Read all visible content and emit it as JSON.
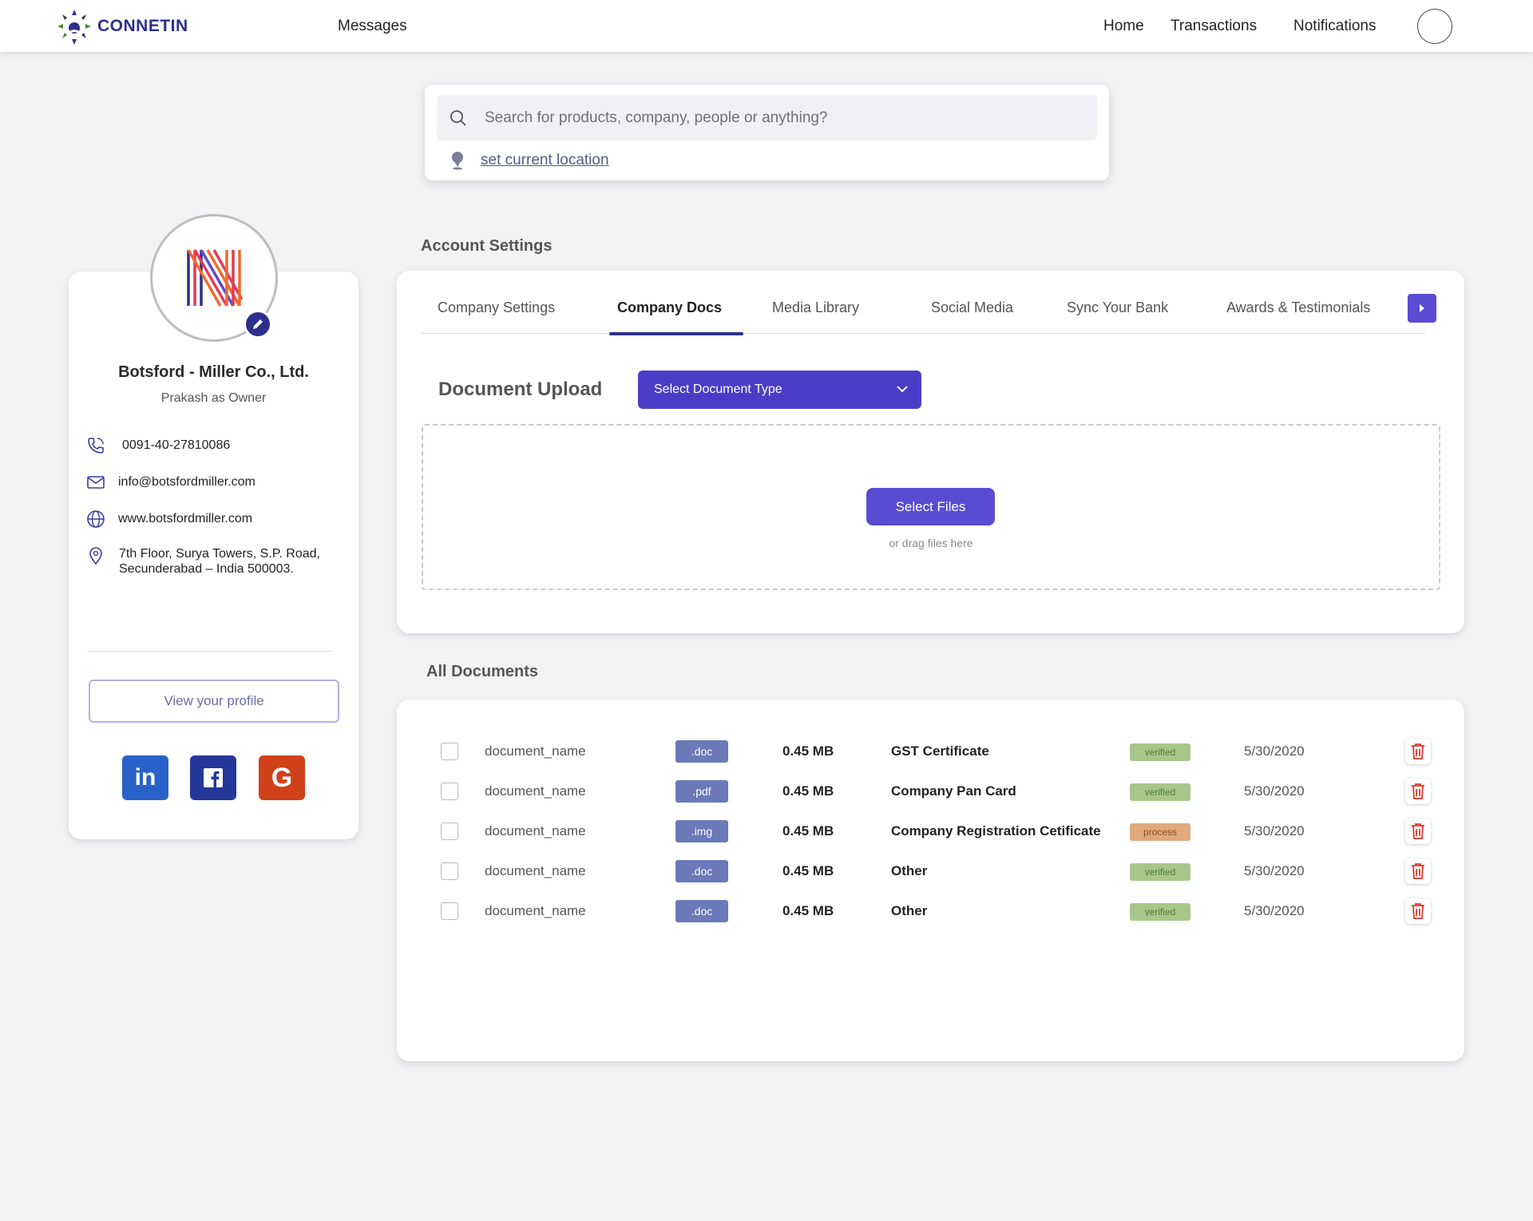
{
  "nav": {
    "brand": "CONNETIN",
    "messages": "Messages",
    "home": "Home",
    "transactions": "Transactions",
    "notifications": "Notifications"
  },
  "search": {
    "placeholder": "Search for products, company, people or anything?",
    "location_link": "set current location"
  },
  "profile": {
    "company_name": "Botsford - Miller Co., Ltd.",
    "role": "Prakash as Owner",
    "phone": "0091-40-27810086",
    "email": "info@botsfordmiller.com",
    "website": "www.botsfordmiller.com",
    "address_line1": "7th Floor, Surya Towers, S.P. Road,",
    "address_line2": "Secunderabad – India 500003.",
    "view_profile": "View your profile",
    "social": {
      "linkedin_label": "in",
      "google_label": "G"
    }
  },
  "settings": {
    "title": "Account Settings",
    "tabs": [
      {
        "label": "Company Settings"
      },
      {
        "label": "Company Docs"
      },
      {
        "label": "Media  Library"
      },
      {
        "label": "Social Media"
      },
      {
        "label": "Sync Your Bank"
      },
      {
        "label": "Awards & Testimonials"
      }
    ],
    "active_tab": "Company Docs",
    "upload_title": "Document Upload",
    "select_type": "Select Document  Type",
    "select_files": "Select Files",
    "drag_text": "or drag files here"
  },
  "documents": {
    "title": "All Documents",
    "rows": [
      {
        "name": "document_name",
        "ext": ".doc",
        "size": "0.45 MB",
        "type": "GST Certificate",
        "status": "verified",
        "date": "5/30/2020"
      },
      {
        "name": "document_name",
        "ext": ".pdf",
        "size": "0.45 MB",
        "type": "Company Pan Card",
        "status": "verified",
        "date": "5/30/2020"
      },
      {
        "name": "document_name",
        "ext": ".img",
        "size": "0.45 MB",
        "type": "Company Registration Cetificate",
        "status": "process",
        "date": "5/30/2020"
      },
      {
        "name": "document_name",
        "ext": ".doc",
        "size": "0.45 MB",
        "type": "Other",
        "status": "verified",
        "date": "5/30/2020"
      },
      {
        "name": "document_name",
        "ext": ".doc",
        "size": "0.45 MB",
        "type": "Other",
        "status": "verified",
        "date": "5/30/2020"
      }
    ]
  },
  "colors": {
    "brand": "#2d2f8c",
    "accent": "#5a4bd3",
    "verified": "#a8c68a",
    "process": "#e0a97a",
    "delete": "#e0382b"
  }
}
